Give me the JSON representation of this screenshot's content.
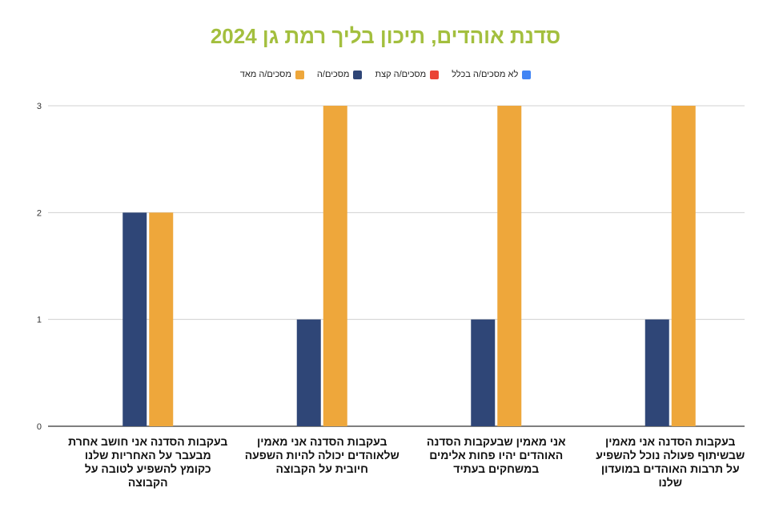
{
  "chart_data": {
    "type": "bar",
    "title": "סדנת אוהדים, תיכון בליך רמת גן 2024",
    "title_color": "#a3bf3e",
    "legend_position": "top",
    "grid": true,
    "ylim": [
      0,
      3
    ],
    "yticks": [
      "0",
      "1",
      "2",
      "3"
    ],
    "categories": [
      "בעקבות הסדנה אני חושב אחרת מבעבר על האחריות שלנו כקומץ להשפיע לטובה על הקבוצה",
      "בעקבות הסדנה אני מאמין שלאוהדים יכולה להיות השפעה חיובית על הקבוצה",
      "אני מאמין שבעקבות הסדנה האוהדים יהיו פחות אלימים במשחקים בעתיד",
      "בעקבות הסדנה אני מאמין שבשיתוף פעולה נוכל להשפיע על תרבות האוהדים במועדון שלנו"
    ],
    "series": [
      {
        "name": "לא מסכים/ה בכלל",
        "color": "#4285f4",
        "values": [
          0,
          0,
          0,
          0
        ]
      },
      {
        "name": "מסכים/ה קצת",
        "color": "#ea4335",
        "values": [
          0,
          0,
          0,
          0
        ]
      },
      {
        "name": "מסכים/ה",
        "color": "#2f4677",
        "values": [
          2,
          1,
          1,
          1
        ]
      },
      {
        "name": "מסכים/ה מאד",
        "color": "#eea73b",
        "values": [
          2,
          3,
          3,
          3
        ]
      }
    ]
  }
}
